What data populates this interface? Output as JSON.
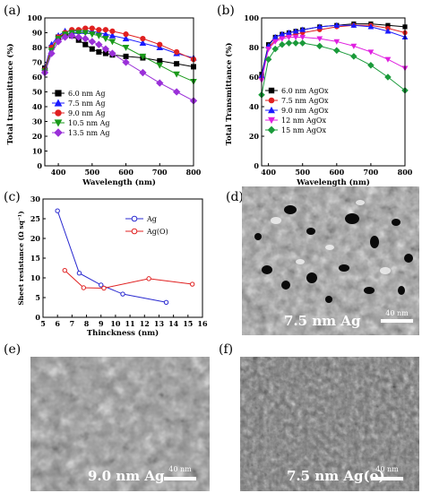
{
  "panel_letters": {
    "a": "(a)",
    "b": "(b)",
    "c": "(c)",
    "d": "(d)",
    "e": "(e)",
    "f": "(f)"
  },
  "sem_images": {
    "d": {
      "label": "7.5 nm Ag",
      "scale_text": "40 nm"
    },
    "e": {
      "label": "9.0 nm Ag",
      "scale_text": "40 nm"
    },
    "f": {
      "label": "7.5 nm Ag(o)",
      "scale_text": "40 nm"
    }
  },
  "chart_data": [
    {
      "panel": "a",
      "type": "line",
      "xlabel": "Wavelength (nm)",
      "ylabel": "Total transmittance (%)",
      "xlim": [
        360,
        800
      ],
      "ylim": [
        0,
        100
      ],
      "xticks": [
        400,
        500,
        600,
        700,
        800
      ],
      "yticks": [
        0,
        10,
        20,
        30,
        40,
        50,
        60,
        70,
        80,
        90,
        100
      ],
      "legend_position": "bottom-left",
      "series": [
        {
          "name": "6.0 nm Ag",
          "color": "#000000",
          "marker": "square",
          "x": [
            360,
            380,
            400,
            420,
            440,
            460,
            480,
            500,
            520,
            540,
            560,
            600,
            650,
            700,
            750,
            800
          ],
          "values": [
            66,
            80,
            87,
            89,
            88,
            85,
            82,
            79,
            77,
            76,
            75,
            74,
            73,
            71,
            69,
            67
          ]
        },
        {
          "name": "7.5 nm Ag",
          "color": "#1a1aff",
          "marker": "triangle-up",
          "x": [
            360,
            380,
            400,
            420,
            440,
            460,
            480,
            500,
            520,
            540,
            560,
            600,
            650,
            700,
            750,
            800
          ],
          "values": [
            66,
            82,
            88,
            91,
            91,
            91,
            91,
            91,
            90,
            89,
            88,
            86,
            83,
            80,
            76,
            73
          ]
        },
        {
          "name": "9.0 nm Ag",
          "color": "#e02020",
          "marker": "circle",
          "x": [
            360,
            380,
            400,
            420,
            440,
            460,
            480,
            500,
            520,
            540,
            560,
            600,
            650,
            700,
            750,
            800
          ],
          "values": [
            65,
            80,
            87,
            90,
            92,
            92,
            93,
            93,
            92,
            92,
            91,
            89,
            86,
            82,
            77,
            72
          ]
        },
        {
          "name": "10.5 nm Ag",
          "color": "#1a9a1a",
          "marker": "triangle-down",
          "x": [
            360,
            380,
            400,
            420,
            440,
            460,
            480,
            500,
            520,
            540,
            560,
            600,
            650,
            700,
            750,
            800
          ],
          "values": [
            64,
            78,
            86,
            89,
            90,
            90,
            90,
            89,
            88,
            86,
            84,
            80,
            74,
            68,
            62,
            57
          ]
        },
        {
          "name": "13.5 nm Ag",
          "color": "#9a30d8",
          "marker": "diamond",
          "x": [
            360,
            380,
            400,
            420,
            440,
            460,
            480,
            500,
            520,
            540,
            560,
            600,
            650,
            700,
            750,
            800
          ],
          "values": [
            63,
            76,
            84,
            87,
            88,
            87,
            86,
            84,
            82,
            79,
            76,
            70,
            63,
            56,
            50,
            44
          ]
        }
      ]
    },
    {
      "panel": "b",
      "type": "line",
      "xlabel": "Wavelength (nm)",
      "ylabel": "Total Transmittance (%)",
      "xlim": [
        380,
        800
      ],
      "ylim": [
        0,
        100
      ],
      "xticks": [
        400,
        500,
        600,
        700,
        800
      ],
      "yticks": [
        0,
        20,
        40,
        60,
        80,
        100
      ],
      "legend_position": "bottom-left",
      "series": [
        {
          "name": "6.0 nm AgOx",
          "color": "#000000",
          "marker": "square",
          "x": [
            380,
            400,
            420,
            440,
            460,
            480,
            500,
            550,
            600,
            650,
            700,
            750,
            800
          ],
          "values": [
            62,
            82,
            87,
            89,
            90,
            91,
            92,
            94,
            95,
            96,
            96,
            95,
            94
          ]
        },
        {
          "name": "7.5 nm AgOx",
          "color": "#e02020",
          "marker": "circle",
          "x": [
            380,
            400,
            420,
            440,
            460,
            480,
            500,
            550,
            600,
            650,
            700,
            750,
            800
          ],
          "values": [
            60,
            80,
            85,
            87,
            88,
            89,
            90,
            92,
            94,
            95,
            95,
            93,
            90
          ]
        },
        {
          "name": "9.0 nm AgOx",
          "color": "#1a1aff",
          "marker": "triangle-up",
          "x": [
            380,
            400,
            420,
            440,
            460,
            480,
            500,
            550,
            600,
            650,
            700,
            750,
            800
          ],
          "values": [
            61,
            81,
            87,
            89,
            90,
            91,
            92,
            94,
            95,
            95,
            94,
            91,
            87
          ]
        },
        {
          "name": "12 nm AgOx",
          "color": "#e020e0",
          "marker": "triangle-down",
          "x": [
            380,
            400,
            420,
            440,
            460,
            480,
            500,
            550,
            600,
            650,
            700,
            750,
            800
          ],
          "values": [
            58,
            79,
            84,
            86,
            87,
            87,
            87,
            86,
            84,
            81,
            77,
            72,
            66
          ]
        },
        {
          "name": "15 nm AgOx",
          "color": "#1a9a3a",
          "marker": "diamond",
          "x": [
            380,
            400,
            420,
            440,
            460,
            480,
            500,
            550,
            600,
            650,
            700,
            750,
            800
          ],
          "values": [
            48,
            72,
            79,
            82,
            83,
            83,
            83,
            81,
            78,
            74,
            68,
            60,
            51
          ]
        }
      ]
    },
    {
      "panel": "c",
      "type": "line",
      "xlabel": "Thinckness (nm)",
      "ylabel": "Sheet resistance (Ω sq⁻¹)",
      "xlim": [
        5,
        16
      ],
      "ylim": [
        0,
        30
      ],
      "xticks": [
        5,
        6,
        7,
        8,
        9,
        10,
        11,
        12,
        13,
        14,
        15,
        16
      ],
      "yticks": [
        0,
        5,
        10,
        15,
        20,
        25,
        30
      ],
      "legend_position": "top-right",
      "series": [
        {
          "name": "Ag",
          "color": "#2a2ad0",
          "marker": "circle",
          "x": [
            6.0,
            7.5,
            9.0,
            10.5,
            13.5
          ],
          "values": [
            27,
            11.2,
            8.2,
            5.9,
            3.8
          ]
        },
        {
          "name": "Ag(O)",
          "color": "#e02020",
          "marker": "circle",
          "x": [
            6.5,
            7.8,
            9.2,
            12.3,
            15.3
          ],
          "values": [
            11.9,
            7.5,
            7.4,
            9.8,
            8.4
          ]
        }
      ]
    }
  ]
}
